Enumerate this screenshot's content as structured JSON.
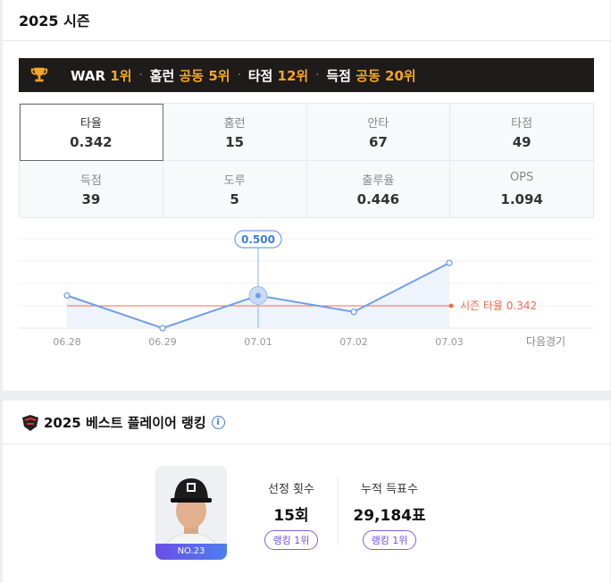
{
  "season": {
    "title": "2025 시즌"
  },
  "ranks": [
    {
      "label": "WAR",
      "value": "1위"
    },
    {
      "label": "홈런",
      "value": "공동 5위"
    },
    {
      "label": "타점",
      "value": "12위"
    },
    {
      "label": "득점",
      "value": "공동 20위"
    }
  ],
  "stats": [
    {
      "label": "타율",
      "value": "0.342",
      "active": true
    },
    {
      "label": "홈런",
      "value": "15"
    },
    {
      "label": "안타",
      "value": "67"
    },
    {
      "label": "타점",
      "value": "49"
    },
    {
      "label": "득점",
      "value": "39"
    },
    {
      "label": "도루",
      "value": "5"
    },
    {
      "label": "출루율",
      "value": "0.446"
    },
    {
      "label": "OPS",
      "value": "1.094"
    }
  ],
  "chart_data": {
    "type": "line",
    "categories": [
      "06.28",
      "06.29",
      "07.01",
      "07.02",
      "07.03"
    ],
    "extra_category": "다음경기",
    "values": [
      0.5,
      0.0,
      0.5,
      0.25,
      1.0
    ],
    "ylim": [
      0,
      1.0
    ],
    "highlight_index": 2,
    "highlight_label": "0.500",
    "reference": {
      "label": "시즌 타율",
      "value_label": "0.342",
      "value": 0.342
    },
    "colors": {
      "line": "#6fa0e6",
      "fill": "#eef3fc",
      "reference": "#f26b4f"
    }
  },
  "ranking": {
    "title": "2025 베스트 플레이어 랭킹",
    "info_icon": "i",
    "player_number": "NO.23",
    "metrics": [
      {
        "label": "선정 횟수",
        "value": "15회",
        "badge": "랭킹 1위"
      },
      {
        "label": "누적 득표수",
        "value": "29,184표",
        "badge": "랭킹 1위"
      }
    ]
  }
}
